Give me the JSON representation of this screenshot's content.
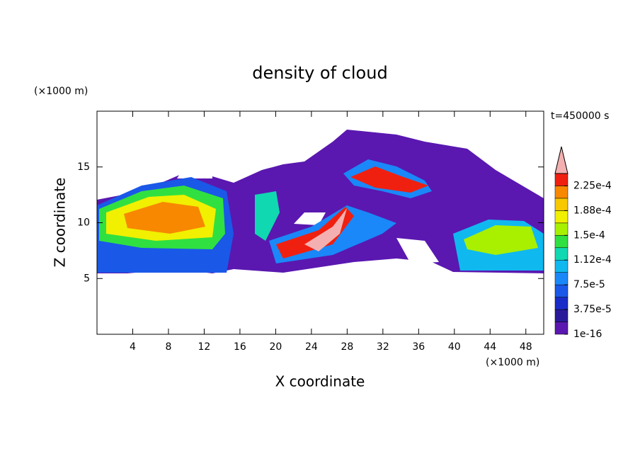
{
  "chart_data": {
    "type": "contour",
    "title": "density of cloud",
    "time_label": "t=450000 s",
    "x_label": "X coordinate",
    "y_label": "Z coordinate",
    "x_unit": "(×1000 m)",
    "y_unit": "(×1000 m)",
    "xlim": [
      0,
      50
    ],
    "xticks": [
      4,
      8,
      12,
      16,
      20,
      24,
      28,
      32,
      36,
      40,
      44,
      48
    ],
    "ylim": [
      0,
      20
    ],
    "yticks": [
      5,
      10,
      15
    ],
    "colorbar": {
      "lim": [
        1e-16,
        0.00024375
      ],
      "ticks": [
        1e-16,
        {
          "value": 3.75e-05,
          "label": "3.75e-5"
        },
        {
          "value": 7.5e-05,
          "label": "7.5e-5"
        },
        {
          "value": 0.0001125,
          "label": "1.12e-4"
        },
        {
          "value": 0.00015,
          "label": "1.5e-4"
        },
        {
          "value": 0.0001875,
          "label": "1.88e-4"
        },
        {
          "value": 0.000225,
          "label": "2.25e-4"
        }
      ],
      "colors": [
        "#5a18b0",
        "#2a1a9a",
        "#1a2cc8",
        "#1a58e8",
        "#1a88f8",
        "#10b8f0",
        "#10d8b0",
        "#30e040",
        "#a8f000",
        "#f0f000",
        "#f8c800",
        "#f88800",
        "#f02010"
      ],
      "extend_color": "#f4b0b0"
    }
  }
}
